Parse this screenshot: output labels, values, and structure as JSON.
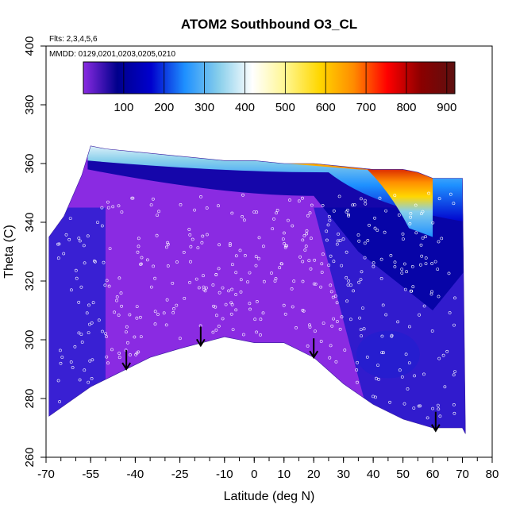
{
  "chart_data": {
    "type": "heatmap",
    "title": "ATOM2 Southbound O3_CL",
    "annotations": {
      "flights": "Flts: 2,3,4,5,6",
      "dates": "MMDD: 0129,0201,0203,0205,0210"
    },
    "xlabel": "Latitude (deg N)",
    "ylabel": "Theta (C)",
    "xlim": [
      -70,
      80
    ],
    "ylim": [
      260,
      400
    ],
    "x_ticks": [
      -70,
      -55,
      -40,
      -25,
      -10,
      0,
      10,
      20,
      30,
      40,
      50,
      60,
      70,
      80
    ],
    "x_minor_step": 5,
    "y_ticks": [
      260,
      280,
      300,
      320,
      340,
      360,
      380,
      400
    ],
    "colorbar": {
      "min": 0,
      "max": 920,
      "ticks": [
        100,
        200,
        300,
        400,
        500,
        600,
        700,
        800,
        900
      ],
      "colors": [
        "#8a2be2",
        "#00008b",
        "#0000cd",
        "#1e90ff",
        "#87ceeb",
        "#ffffff",
        "#fff68f",
        "#ffd700",
        "#ff8c00",
        "#ff0000",
        "#8b0000",
        "#5c1010"
      ]
    },
    "domain_bottom": [
      [
        -69,
        274
      ],
      [
        -55,
        284
      ],
      [
        -45,
        289
      ],
      [
        -35,
        294
      ],
      [
        -25,
        297
      ],
      [
        -10,
        301
      ],
      [
        0,
        299
      ],
      [
        10,
        299
      ],
      [
        20,
        294
      ],
      [
        30,
        285
      ],
      [
        40,
        278
      ],
      [
        50,
        273
      ],
      [
        60,
        270
      ],
      [
        70,
        270
      ],
      [
        71,
        268
      ]
    ],
    "domain_top": [
      [
        -69,
        335
      ],
      [
        -64,
        342
      ],
      [
        -58,
        356
      ],
      [
        -55,
        366
      ],
      [
        -50,
        365
      ],
      [
        -40,
        364
      ],
      [
        -30,
        363
      ],
      [
        -20,
        362
      ],
      [
        -10,
        361
      ],
      [
        0,
        361
      ],
      [
        10,
        360
      ],
      [
        20,
        360
      ],
      [
        30,
        359
      ],
      [
        40,
        358
      ],
      [
        50,
        358
      ],
      [
        55,
        357
      ],
      [
        60,
        355
      ],
      [
        70,
        355
      ]
    ],
    "ozone_field": [
      {
        "theta": 362,
        "lat_from": -53,
        "lat_to": 5,
        "value": 280
      },
      {
        "theta": 360,
        "lat_from": 5,
        "lat_to": 38,
        "value": 650
      },
      {
        "theta": 358,
        "lat_from": 38,
        "lat_to": 60,
        "value": 820
      },
      {
        "theta": 354,
        "lat_from": -55,
        "lat_to": 10,
        "value": 150
      },
      {
        "theta": 350,
        "lat_from": 20,
        "lat_to": 55,
        "value": 500
      },
      {
        "theta": 345,
        "lat_from": 45,
        "lat_to": 60,
        "value": 650
      },
      {
        "theta": 330,
        "lat_from": -50,
        "lat_to": 50,
        "value": 40
      },
      {
        "theta": 315,
        "lat_from": -69,
        "lat_to": -55,
        "value": 150
      },
      {
        "theta": 305,
        "lat_from": 20,
        "lat_to": 70,
        "value": 120
      },
      {
        "theta": 300,
        "lat_from": -45,
        "lat_to": 15,
        "value": 30
      }
    ],
    "arrows": [
      {
        "lat": -43,
        "theta": 290
      },
      {
        "lat": -18,
        "theta": 298
      },
      {
        "lat": 20,
        "theta": 294
      },
      {
        "lat": 61,
        "theta": 269
      }
    ]
  }
}
